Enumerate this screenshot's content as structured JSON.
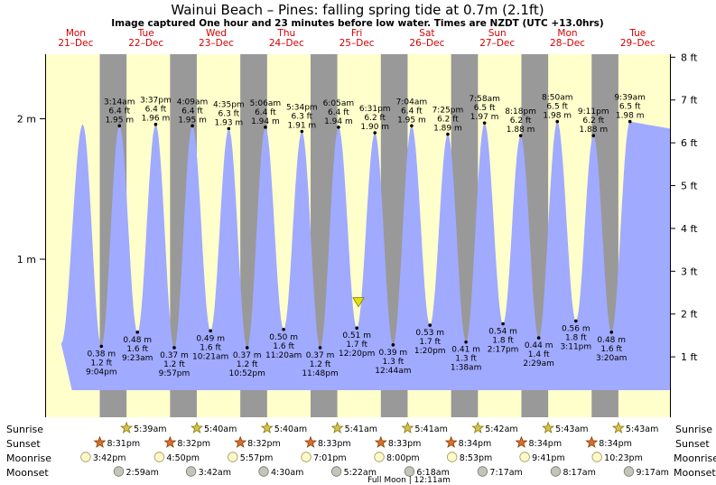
{
  "title": "Wainui Beach – Pines: falling  spring tide at 0.7m (2.1ft)",
  "subtitle": "Image captured One hour and 23 minutes before low water. Times are NZDT (UTC +13.0hrs)",
  "colors": {
    "day": "#ffffcc",
    "night": "#999999",
    "tide": "#a0aaff",
    "day_header": "#d40000",
    "marker": "#e8e000"
  },
  "chart_data": {
    "type": "area",
    "title": "Wainui Beach – Pines: falling  spring tide at 0.7m (2.1ft)",
    "y_left_ticks": [
      {
        "value": 1,
        "label": "1 m"
      },
      {
        "value": 2,
        "label": "2 m"
      }
    ],
    "y_right_ticks": [
      {
        "value": 1,
        "label": "1 ft"
      },
      {
        "value": 2,
        "label": "2 ft"
      },
      {
        "value": 3,
        "label": "3 ft"
      },
      {
        "value": 4,
        "label": "4 ft"
      },
      {
        "value": 5,
        "label": "5 ft"
      },
      {
        "value": 6,
        "label": "6 ft"
      },
      {
        "value": 7,
        "label": "7 ft"
      },
      {
        "value": 8,
        "label": "8 ft"
      }
    ],
    "days": [
      {
        "dow": "Mon",
        "date": "21–Dec"
      },
      {
        "dow": "Tue",
        "date": "22–Dec"
      },
      {
        "dow": "Wed",
        "date": "23–Dec"
      },
      {
        "dow": "Thu",
        "date": "24–Dec"
      },
      {
        "dow": "Fri",
        "date": "25–Dec"
      },
      {
        "dow": "Sat",
        "date": "26–Dec"
      },
      {
        "dow": "Sun",
        "date": "27–Dec"
      },
      {
        "dow": "Mon",
        "date": "28–Dec"
      },
      {
        "dow": "Tue",
        "date": "29–Dec"
      }
    ],
    "initial_high_m": 1.96,
    "tides": [
      {
        "type": "low",
        "day": 0,
        "time": "9:04 pm",
        "m": "0.38 m",
        "ft": "1.2 ft",
        "h": 0.38
      },
      {
        "type": "high",
        "day": 1,
        "time": "3:14 am",
        "m": "1.95 m",
        "ft": "6.4 ft",
        "h": 1.95
      },
      {
        "type": "low",
        "day": 1,
        "time": "9:23 am",
        "m": "0.48 m",
        "ft": "1.6 ft",
        "h": 0.48
      },
      {
        "type": "high",
        "day": 1,
        "time": "3:37 pm",
        "m": "1.96 m",
        "ft": "6.4 ft",
        "h": 1.96
      },
      {
        "type": "low",
        "day": 1,
        "time": "9:57 pm",
        "m": "0.37 m",
        "ft": "1.2 ft",
        "h": 0.37
      },
      {
        "type": "high",
        "day": 2,
        "time": "4:09 am",
        "m": "1.95 m",
        "ft": "6.4 ft",
        "h": 1.95
      },
      {
        "type": "low",
        "day": 2,
        "time": "10:21 am",
        "m": "0.49 m",
        "ft": "1.6 ft",
        "h": 0.49
      },
      {
        "type": "high",
        "day": 2,
        "time": "4:35 pm",
        "m": "1.93 m",
        "ft": "6.3 ft",
        "h": 1.93
      },
      {
        "type": "low",
        "day": 2,
        "time": "10:52 pm",
        "m": "0.37 m",
        "ft": "1.2 ft",
        "h": 0.37
      },
      {
        "type": "high",
        "day": 3,
        "time": "5:06 am",
        "m": "1.94 m",
        "ft": "6.4 ft",
        "h": 1.94
      },
      {
        "type": "low",
        "day": 3,
        "time": "11:20 am",
        "m": "0.50 m",
        "ft": "1.6 ft",
        "h": 0.5
      },
      {
        "type": "high",
        "day": 3,
        "time": "5:34 pm",
        "m": "1.91 m",
        "ft": "6.3 ft",
        "h": 1.91
      },
      {
        "type": "low",
        "day": 3,
        "time": "11:48 pm",
        "m": "0.37 m",
        "ft": "1.2 ft",
        "h": 0.37
      },
      {
        "type": "high",
        "day": 4,
        "time": "6:05 am",
        "m": "1.94 m",
        "ft": "6.4 ft",
        "h": 1.94
      },
      {
        "type": "low",
        "day": 4,
        "time": "12:20 pm",
        "m": "0.51 m",
        "ft": "1.7 ft",
        "h": 0.51
      },
      {
        "type": "high",
        "day": 4,
        "time": "6:31 pm",
        "m": "1.90 m",
        "ft": "6.2 ft",
        "h": 1.9
      },
      {
        "type": "low",
        "day": 5,
        "time": "12:44 am",
        "m": "0.39 m",
        "ft": "1.3 ft",
        "h": 0.39
      },
      {
        "type": "high",
        "day": 5,
        "time": "7:04 am",
        "m": "1.95 m",
        "ft": "6.4 ft",
        "h": 1.95
      },
      {
        "type": "low",
        "day": 5,
        "time": "1:20 pm",
        "m": "0.53 m",
        "ft": "1.7 ft",
        "h": 0.53
      },
      {
        "type": "high",
        "day": 5,
        "time": "7:25 pm",
        "m": "1.89 m",
        "ft": "6.2 ft",
        "h": 1.89
      },
      {
        "type": "low",
        "day": 6,
        "time": "1:38 am",
        "m": "0.41 m",
        "ft": "1.3 ft",
        "h": 0.41
      },
      {
        "type": "high",
        "day": 6,
        "time": "7:58 am",
        "m": "1.97 m",
        "ft": "6.5 ft",
        "h": 1.97
      },
      {
        "type": "low",
        "day": 6,
        "time": "2:17 pm",
        "m": "0.54 m",
        "ft": "1.8 ft",
        "h": 0.54
      },
      {
        "type": "high",
        "day": 6,
        "time": "8:18 pm",
        "m": "1.88 m",
        "ft": "6.2 ft",
        "h": 1.88
      },
      {
        "type": "low",
        "day": 7,
        "time": "2:29 am",
        "m": "0.44 m",
        "ft": "1.4 ft",
        "h": 0.44
      },
      {
        "type": "high",
        "day": 7,
        "time": "8:50 am",
        "m": "1.98 m",
        "ft": "6.5 ft",
        "h": 1.98
      },
      {
        "type": "low",
        "day": 7,
        "time": "3:11 pm",
        "m": "0.56 m",
        "ft": "1.8 ft",
        "h": 0.56
      },
      {
        "type": "high",
        "day": 7,
        "time": "9:11 pm",
        "m": "1.88 m",
        "ft": "6.2 ft",
        "h": 1.88
      },
      {
        "type": "low",
        "day": 8,
        "time": "3:20 am",
        "m": "0.48 m",
        "ft": "1.6 ft",
        "h": 0.48
      },
      {
        "type": "high",
        "day": 8,
        "time": "9:39 am",
        "m": "1.98 m",
        "ft": "6.5 ft",
        "h": 1.98
      }
    ],
    "current_level_m": 0.7,
    "sun": [
      {
        "rise": "5:39am",
        "set": "8:31pm"
      },
      {
        "rise": "5:40am",
        "set": "8:32pm"
      },
      {
        "rise": "5:40am",
        "set": "8:32pm"
      },
      {
        "rise": "5:41am",
        "set": "8:33pm"
      },
      {
        "rise": "5:41am",
        "set": "8:33pm"
      },
      {
        "rise": "5:42am",
        "set": "8:34pm"
      },
      {
        "rise": "5:43am",
        "set": "8:34pm"
      },
      {
        "rise": "5:43am",
        "set": "8:34pm"
      }
    ],
    "moonrise": [
      "3:42pm",
      "4:50pm",
      "5:57pm",
      "7:01pm",
      "8:00pm",
      "8:53pm",
      "9:41pm",
      "10:23pm"
    ],
    "moonset": [
      "2:59am",
      "3:42am",
      "4:30am",
      "5:22am",
      "6:18am",
      "7:17am",
      "8:17am",
      "9:17am"
    ]
  },
  "rows": {
    "sunrise": "Sunrise",
    "sunset": "Sunset",
    "moonrise": "Moonrise",
    "moonset": "Moonset"
  },
  "footer": "Full Moon | 12:11am"
}
